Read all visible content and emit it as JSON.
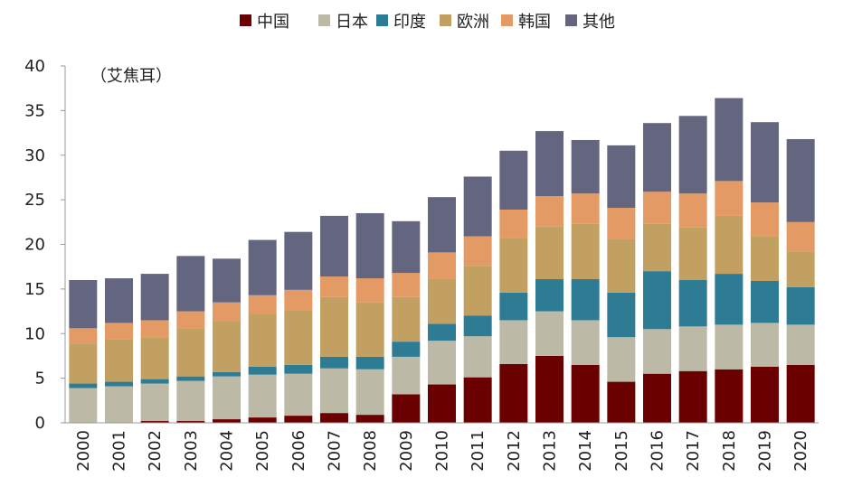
{
  "chart_data": {
    "type": "bar",
    "stacked": true,
    "unit_label": "（艾焦耳）",
    "categories": [
      "2000",
      "2001",
      "2002",
      "2003",
      "2004",
      "2005",
      "2006",
      "2007",
      "2008",
      "2009",
      "2010",
      "2011",
      "2012",
      "2013",
      "2014",
      "2015",
      "2016",
      "2017",
      "2018",
      "2019",
      "2020"
    ],
    "ylim": [
      0,
      40
    ],
    "yticks": [
      0,
      5,
      10,
      15,
      20,
      25,
      30,
      35,
      40
    ],
    "legend_position": "top-center",
    "series": [
      {
        "name": "中国",
        "color": "#6b0000",
        "values": [
          0.0,
          0.0,
          0.2,
          0.2,
          0.4,
          0.6,
          0.8,
          1.1,
          0.9,
          3.2,
          4.3,
          5.1,
          6.6,
          7.5,
          6.5,
          4.6,
          5.5,
          5.8,
          6.0,
          6.3,
          6.5
        ]
      },
      {
        "name": "日本",
        "color": "#bcbaa6",
        "values": [
          3.9,
          4.1,
          4.2,
          4.5,
          4.8,
          4.8,
          4.7,
          5.0,
          5.1,
          4.2,
          4.9,
          4.6,
          4.9,
          5.0,
          5.0,
          5.0,
          5.0,
          5.0,
          5.0,
          4.9,
          4.5
        ]
      },
      {
        "name": "印度",
        "color": "#2e7b94",
        "values": [
          0.5,
          0.5,
          0.5,
          0.5,
          0.5,
          0.9,
          1.0,
          1.3,
          1.4,
          1.7,
          1.9,
          2.3,
          3.1,
          3.6,
          4.6,
          5.0,
          6.5,
          5.2,
          5.7,
          4.7,
          4.2
        ]
      },
      {
        "name": "欧洲",
        "color": "#c1a062",
        "values": [
          4.5,
          4.8,
          4.7,
          5.4,
          5.7,
          5.9,
          6.1,
          6.7,
          6.1,
          5.0,
          5.0,
          5.6,
          6.1,
          5.9,
          6.2,
          6.0,
          5.3,
          5.9,
          6.5,
          5.0,
          4.0
        ]
      },
      {
        "name": "韩国",
        "color": "#e39a65",
        "values": [
          1.7,
          1.8,
          1.9,
          1.9,
          2.1,
          2.1,
          2.3,
          2.3,
          2.7,
          2.7,
          3.0,
          3.3,
          3.2,
          3.4,
          3.4,
          3.5,
          3.6,
          3.8,
          3.9,
          3.8,
          3.3
        ]
      },
      {
        "name": "其他",
        "color": "#646680",
        "values": [
          5.4,
          5.0,
          5.2,
          6.2,
          4.9,
          6.2,
          6.5,
          6.8,
          7.3,
          5.8,
          6.2,
          6.7,
          6.6,
          7.3,
          6.0,
          7.0,
          7.7,
          8.7,
          9.3,
          9.0,
          9.3
        ]
      }
    ]
  }
}
